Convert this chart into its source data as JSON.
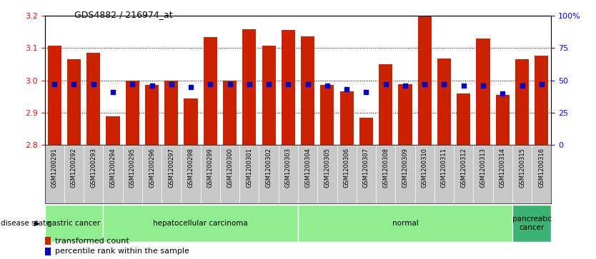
{
  "title": "GDS4882 / 216974_at",
  "samples": [
    "GSM1200291",
    "GSM1200292",
    "GSM1200293",
    "GSM1200294",
    "GSM1200295",
    "GSM1200296",
    "GSM1200297",
    "GSM1200298",
    "GSM1200299",
    "GSM1200300",
    "GSM1200301",
    "GSM1200302",
    "GSM1200303",
    "GSM1200304",
    "GSM1200305",
    "GSM1200306",
    "GSM1200307",
    "GSM1200308",
    "GSM1200309",
    "GSM1200310",
    "GSM1200311",
    "GSM1200312",
    "GSM1200313",
    "GSM1200314",
    "GSM1200315",
    "GSM1200316"
  ],
  "transformed_count": [
    3.107,
    3.065,
    3.085,
    2.888,
    3.0,
    2.985,
    2.999,
    2.943,
    3.133,
    3.0,
    3.157,
    3.107,
    3.155,
    3.135,
    2.985,
    2.965,
    2.885,
    3.05,
    2.988,
    3.198,
    3.068,
    2.96,
    3.13,
    2.955,
    3.065,
    3.075
  ],
  "percentile_rank": [
    47,
    47,
    47,
    41,
    47,
    46,
    47,
    45,
    47,
    47,
    47,
    47,
    47,
    47,
    46,
    43,
    41,
    47,
    46,
    47,
    47,
    46,
    46,
    40,
    46,
    47
  ],
  "disease_groups": [
    {
      "label": "gastric cancer",
      "start": 0,
      "end": 3,
      "color": "#90EE90"
    },
    {
      "label": "hepatocellular carcinoma",
      "start": 3,
      "end": 13,
      "color": "#90EE90"
    },
    {
      "label": "normal",
      "start": 13,
      "end": 24,
      "color": "#90EE90"
    },
    {
      "label": "pancreatic\ncancer",
      "start": 24,
      "end": 26,
      "color": "#3CB371"
    }
  ],
  "ylim_left": [
    2.8,
    3.2
  ],
  "ylim_right": [
    0,
    100
  ],
  "yticks_left": [
    2.8,
    2.9,
    3.0,
    3.1,
    3.2
  ],
  "yticks_right": [
    0,
    25,
    50,
    75,
    100
  ],
  "bar_color": "#CC2200",
  "dot_color": "#0000CC",
  "plot_bg": "#FFFFFF",
  "xtick_bg": "#C8C8C8"
}
